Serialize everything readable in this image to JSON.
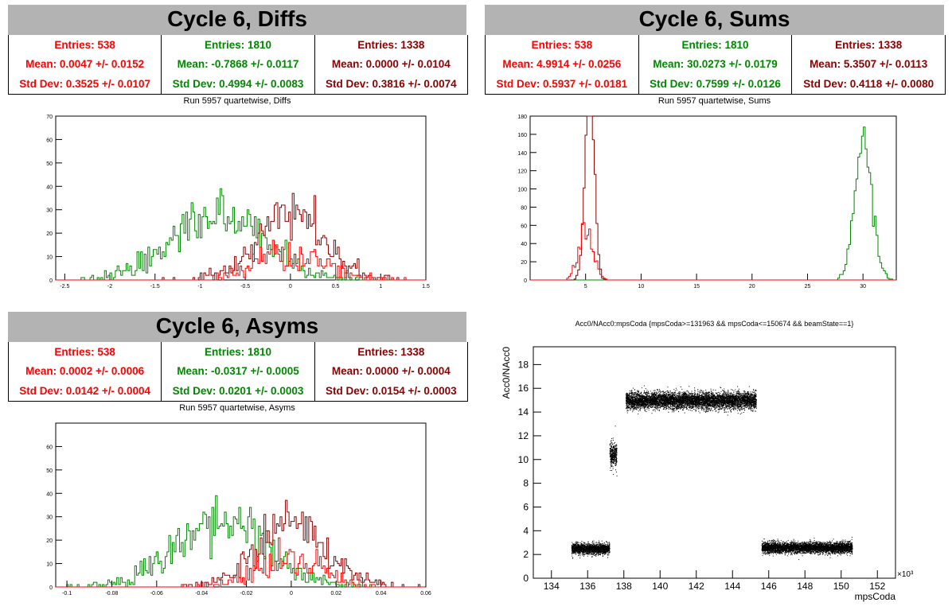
{
  "colors": {
    "red": "#ff0000",
    "green": "#008800",
    "darkred": "#8b0000",
    "header_bg": "#b3b3b3"
  },
  "panels": {
    "diffs": {
      "title": "Cycle 6, Diffs",
      "subtitle": "Run 5957 quartetwise, Diffs",
      "stats": [
        {
          "entries": "Entries: 538",
          "mean": "Mean: 0.0047 +/- 0.0152",
          "std": "Std Dev: 0.3525 +/- 0.0107"
        },
        {
          "entries": "Entries: 1810",
          "mean": "Mean: -0.7868 +/- 0.0117",
          "std": "Std Dev: 0.4994 +/- 0.0083"
        },
        {
          "entries": "Entries: 1338",
          "mean": "Mean: 0.0000 +/- 0.0104",
          "std": "Std Dev: 0.3816 +/- 0.0074"
        }
      ]
    },
    "sums": {
      "title": "Cycle 6, Sums",
      "subtitle": "Run 5957 quartetwise, Sums",
      "stats": [
        {
          "entries": "Entries: 538",
          "mean": "Mean: 4.9914 +/- 0.0256",
          "std": "Std Dev: 0.5937 +/- 0.0181"
        },
        {
          "entries": "Entries: 1810",
          "mean": "Mean: 30.0273 +/- 0.0179",
          "std": "Std Dev: 0.7599 +/- 0.0126"
        },
        {
          "entries": "Entries: 1338",
          "mean": "Mean: 5.3507 +/- 0.0113",
          "std": "Std Dev: 0.4118 +/- 0.0080"
        }
      ]
    },
    "asyms": {
      "title": "Cycle 6, Asyms",
      "subtitle": "Run 5957 quartetwise, Asyms",
      "stats": [
        {
          "entries": "Entries: 538",
          "mean": "Mean: 0.0002 +/- 0.0006",
          "std": "Std Dev: 0.0142 +/- 0.0004"
        },
        {
          "entries": "Entries: 1810",
          "mean": "Mean: -0.0317 +/- 0.0005",
          "std": "Std Dev: 0.0201 +/- 0.0003"
        },
        {
          "entries": "Entries: 1338",
          "mean": "Mean: 0.0000 +/- 0.0004",
          "std": "Std Dev: 0.0154 +/- 0.0003"
        }
      ]
    },
    "scatter": {
      "title": "Acc0/NAcc0:mpsCoda {mpsCoda>=131963 && mpsCoda<=150674 && beamState==1}"
    }
  },
  "chart_data": [
    {
      "type": "histogram",
      "title": "Run 5957 quartetwise, Diffs",
      "xlim": [
        -2.6,
        1.5
      ],
      "ylim": [
        0,
        70
      ],
      "xticks": [
        -2.5,
        -2,
        -1.5,
        -1,
        -0.5,
        0,
        0.5,
        1,
        1.5
      ],
      "xtick_labels": [
        "-2.5",
        "-2",
        "-1.5",
        "-1",
        "-0.5",
        "0",
        "0.5",
        "1",
        "1.5"
      ],
      "yticks": [
        0,
        10,
        20,
        30,
        40,
        50,
        60,
        70
      ],
      "series": [
        {
          "color": "green",
          "entries": 1810,
          "mean": -0.7868,
          "std": 0.4994
        },
        {
          "color": "darkred",
          "entries": 1338,
          "mean": 0.0,
          "std": 0.3816
        },
        {
          "color": "red",
          "entries": 538,
          "mean": 0.0047,
          "std": 0.3525
        }
      ],
      "bin_width": 0.02
    },
    {
      "type": "histogram",
      "title": "Run 5957 quartetwise, Sums",
      "xlim": [
        0,
        33
      ],
      "ylim": [
        0,
        180
      ],
      "xticks": [
        5,
        10,
        15,
        20,
        25,
        30
      ],
      "xtick_labels": [
        "5",
        "10",
        "15",
        "20",
        "25",
        "30"
      ],
      "yticks": [
        0,
        20,
        40,
        60,
        80,
        100,
        120,
        140,
        160,
        180
      ],
      "series": [
        {
          "color": "green",
          "entries": 1810,
          "mean": 30.0273,
          "std": 0.7599
        },
        {
          "color": "darkred",
          "entries": 1338,
          "mean": 5.3507,
          "std": 0.4118
        },
        {
          "color": "red",
          "entries": 538,
          "mean": 4.9914,
          "std": 0.5937
        }
      ],
      "bin_width": 0.165
    },
    {
      "type": "histogram",
      "title": "Run 5957 quartetwise, Asyms",
      "xlim": [
        -0.105,
        0.06
      ],
      "ylim": [
        0,
        70
      ],
      "xticks": [
        -0.1,
        -0.08,
        -0.06,
        -0.04,
        -0.02,
        0,
        0.02,
        0.04,
        0.06
      ],
      "xtick_labels": [
        "-0.1",
        "-0.08",
        "-0.06",
        "-0.04",
        "-0.02",
        "0",
        "0.02",
        "0.04",
        "0.06"
      ],
      "yticks": [
        0,
        10,
        20,
        30,
        40,
        50,
        60
      ],
      "series": [
        {
          "color": "green",
          "entries": 1810,
          "mean": -0.0317,
          "std": 0.0201
        },
        {
          "color": "darkred",
          "entries": 1338,
          "mean": 0.0,
          "std": 0.0154
        },
        {
          "color": "red",
          "entries": 538,
          "mean": 0.0002,
          "std": 0.0142
        }
      ],
      "bin_width": 0.0008
    },
    {
      "type": "scatter",
      "title": "Acc0/NAcc0:mpsCoda {mpsCoda>=131963 && mpsCoda<=150674 && beamState==1}",
      "xlabel": "mpsCoda",
      "ylabel": "Acc0/NAcc0",
      "x_exponent_label": "×10³",
      "xlim": [
        133,
        153
      ],
      "ylim": [
        0,
        19.5
      ],
      "xticks": [
        134,
        136,
        138,
        140,
        142,
        144,
        146,
        148,
        150,
        152
      ],
      "yticks": [
        0,
        2,
        4,
        6,
        8,
        10,
        12,
        14,
        16,
        18
      ],
      "clusters": [
        {
          "x": [
            135.1,
            137.2
          ],
          "y_center": 2.5,
          "y_spread": 0.45
        },
        {
          "x": [
            137.2,
            137.6
          ],
          "y_center": 10.5,
          "y_spread": 1.0
        },
        {
          "x": [
            138.1,
            145.3
          ],
          "y_center": 15.0,
          "y_spread": 0.7
        },
        {
          "x": [
            145.6,
            150.6
          ],
          "y_center": 2.6,
          "y_spread": 0.45
        }
      ]
    }
  ]
}
